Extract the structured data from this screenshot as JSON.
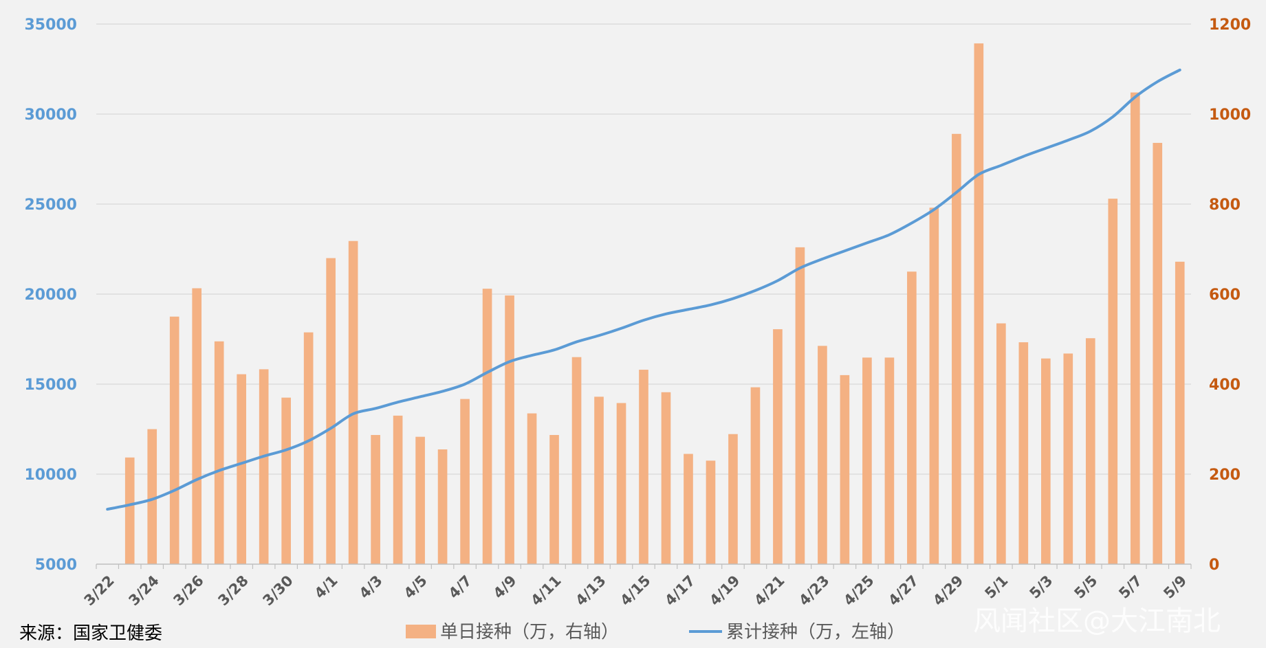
{
  "chart_data": {
    "type": "bar",
    "dates": [
      "3/22",
      "3/23",
      "3/24",
      "3/25",
      "3/26",
      "3/27",
      "3/28",
      "3/29",
      "3/30",
      "3/31",
      "4/1",
      "4/2",
      "4/3",
      "4/4",
      "4/5",
      "4/6",
      "4/7",
      "4/8",
      "4/9",
      "4/10",
      "4/11",
      "4/12",
      "4/13",
      "4/14",
      "4/15",
      "4/16",
      "4/17",
      "4/18",
      "4/19",
      "4/20",
      "4/21",
      "4/22",
      "4/23",
      "4/24",
      "4/25",
      "4/26",
      "4/27",
      "4/28",
      "4/29",
      "4/30",
      "5/1",
      "5/2",
      "5/3",
      "5/4",
      "5/5",
      "5/6",
      "5/7",
      "5/8",
      "5/9"
    ],
    "x_tick_labels": [
      "3/22",
      "3/24",
      "3/26",
      "3/28",
      "3/30",
      "4/1",
      "4/3",
      "4/5",
      "4/7",
      "4/9",
      "4/11",
      "4/13",
      "4/15",
      "4/17",
      "4/19",
      "4/21",
      "4/23",
      "4/25",
      "4/27",
      "4/29",
      "5/1",
      "5/3",
      "5/5",
      "5/7",
      "5/9"
    ],
    "left_axis": {
      "min": 5000,
      "max": 35000,
      "ticks": [
        "5000",
        "10000",
        "15000",
        "20000",
        "25000",
        "30000",
        "35000"
      ],
      "color": "#5b9bd5"
    },
    "right_axis": {
      "min": 0,
      "max": 1200,
      "ticks": [
        "0",
        "200",
        "400",
        "600",
        "800",
        "1000",
        "1200"
      ],
      "color": "#c55a11"
    },
    "grid": true,
    "series": [
      {
        "name": "单日接种（万，右轴）",
        "kind": "bar",
        "axis": "right",
        "color": "#f4b183",
        "values": [
          null,
          237,
          300,
          550,
          613,
          495,
          422,
          433,
          370,
          515,
          680,
          718,
          287,
          330,
          283,
          255,
          367,
          612,
          597,
          335,
          287,
          460,
          372,
          358,
          432,
          382,
          245,
          230,
          289,
          393,
          522,
          704,
          485,
          420,
          459,
          459,
          650,
          792,
          956,
          1157,
          535,
          493,
          457,
          468,
          502,
          812,
          1048,
          936,
          672
        ]
      },
      {
        "name": "累计接种（万，左轴）",
        "kind": "line",
        "axis": "left",
        "color": "#5b9bd5",
        "values": [
          8050,
          8300,
          8600,
          9100,
          9700,
          10200,
          10600,
          11000,
          11350,
          11850,
          12550,
          13350,
          13650,
          14000,
          14300,
          14600,
          15000,
          15650,
          16250,
          16600,
          16900,
          17350,
          17700,
          18100,
          18550,
          18900,
          19150,
          19400,
          19750,
          20200,
          20750,
          21450,
          21950,
          22400,
          22850,
          23300,
          23950,
          24700,
          25650,
          26650,
          27150,
          27650,
          28100,
          28550,
          29050,
          29850,
          30950,
          31800,
          32450
        ]
      }
    ]
  },
  "legend": {
    "bar_label": "单日接种（万，右轴）",
    "line_label": "累计接种（万，左轴）"
  },
  "source": "来源：国家卫健委",
  "watermark": "风闻社区@大江南北"
}
